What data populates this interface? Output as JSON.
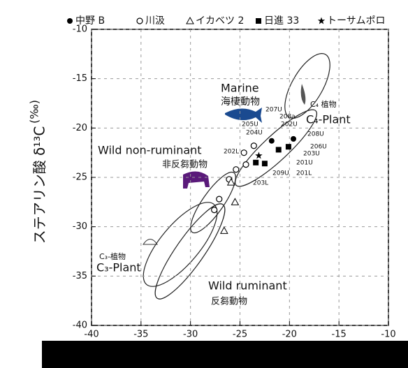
{
  "chart_data": {
    "type": "scatter",
    "y_label": "ステアリン酸 δ¹³C",
    "y_unit": "(‰)",
    "xlim": [
      -40,
      -10
    ],
    "ylim": [
      -40,
      -10
    ],
    "xticks": [
      -40,
      -35,
      -30,
      -25,
      -20,
      -15,
      -10
    ],
    "yticks": [
      -40,
      -35,
      -30,
      -25,
      -20,
      -15,
      -10
    ],
    "grid": true,
    "series": [
      {
        "name": "中野 B",
        "marker": "circle-filled",
        "color": "#000000",
        "x": [
          -19.6,
          -21.8
        ],
        "y": [
          -21.1,
          -21.3
        ]
      },
      {
        "name": "川汲",
        "marker": "circle-open",
        "color": "#000000",
        "x": [
          -23.6,
          -24.4,
          -25.4,
          -26.1,
          -27.1,
          -27.6,
          -24.6
        ],
        "y": [
          -21.8,
          -23.7,
          -24.2,
          -25.2,
          -27.2,
          -28.3,
          -22.5
        ]
      },
      {
        "name": "イカベツ 2",
        "marker": "triangle",
        "color": "#000000",
        "x": [
          -25.5,
          -26.6,
          -25.9
        ],
        "y": [
          -27.5,
          -30.4,
          -25.5
        ]
      },
      {
        "name": "日進 33",
        "marker": "square",
        "color": "#000000",
        "x": [
          -21.1,
          -22.5,
          -23.4,
          -20.1
        ],
        "y": [
          -22.2,
          -23.6,
          -23.5,
          -21.9
        ]
      },
      {
        "name": "トーサムポロ",
        "marker": "star",
        "color": "#000000",
        "x": [
          -23.1
        ],
        "y": [
          -22.8
        ]
      }
    ],
    "annotations": [
      "Marine",
      "海棲動物",
      "C₄ 植物",
      "C₄-Plant",
      "Wild non-ruminant",
      "非反芻動物",
      "C₃-植物",
      "C₃-Plant",
      "Wild ruminant",
      "反芻動物",
      "207U",
      "208a",
      "202U",
      "205U",
      "204U",
      "208U",
      "206U",
      "203U",
      "201U",
      "209U",
      "201L",
      "202L",
      "203L"
    ]
  }
}
